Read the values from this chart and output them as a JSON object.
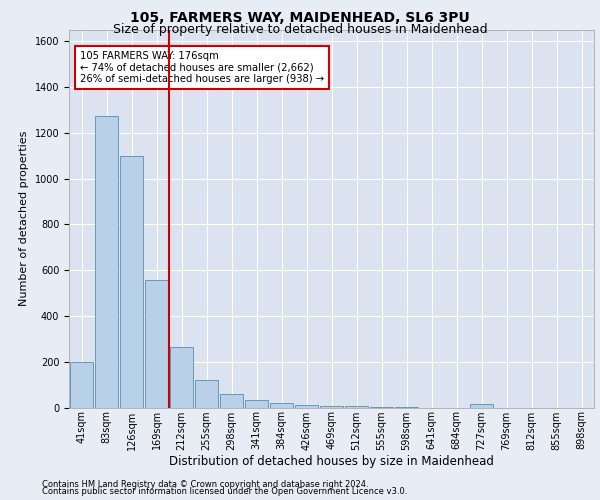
{
  "title1": "105, FARMERS WAY, MAIDENHEAD, SL6 3PU",
  "title2": "Size of property relative to detached houses in Maidenhead",
  "xlabel": "Distribution of detached houses by size in Maidenhead",
  "ylabel": "Number of detached properties",
  "footnote1": "Contains HM Land Registry data © Crown copyright and database right 2024.",
  "footnote2": "Contains public sector information licensed under the Open Government Licence v3.0.",
  "annotation_line1": "105 FARMERS WAY: 176sqm",
  "annotation_line2": "← 74% of detached houses are smaller (2,662)",
  "annotation_line3": "26% of semi-detached houses are larger (938) →",
  "bar_labels": [
    "41sqm",
    "83sqm",
    "126sqm",
    "169sqm",
    "212sqm",
    "255sqm",
    "298sqm",
    "341sqm",
    "384sqm",
    "426sqm",
    "469sqm",
    "512sqm",
    "555sqm",
    "598sqm",
    "641sqm",
    "684sqm",
    "727sqm",
    "769sqm",
    "812sqm",
    "855sqm",
    "898sqm"
  ],
  "bar_values": [
    197,
    1272,
    1100,
    556,
    265,
    120,
    57,
    32,
    20,
    10,
    7,
    5,
    3,
    2,
    0,
    0,
    15,
    0,
    0,
    0,
    0
  ],
  "bar_color": "#b8d0e8",
  "bar_edge_color": "#6699bb",
  "bg_color": "#e8edf5",
  "plot_bg_color": "#dce3f0",
  "grid_color": "#ffffff",
  "vline_color": "#cc0000",
  "vline_position": 3.5,
  "annotation_box_color": "#ffffff",
  "annotation_box_edge": "#cc0000",
  "ylim": [
    0,
    1650
  ],
  "yticks": [
    0,
    200,
    400,
    600,
    800,
    1000,
    1200,
    1400,
    1600
  ],
  "title_fontsize": 10,
  "subtitle_fontsize": 9,
  "ylabel_fontsize": 8,
  "xlabel_fontsize": 8.5,
  "tick_fontsize": 7,
  "footnote_fontsize": 6
}
